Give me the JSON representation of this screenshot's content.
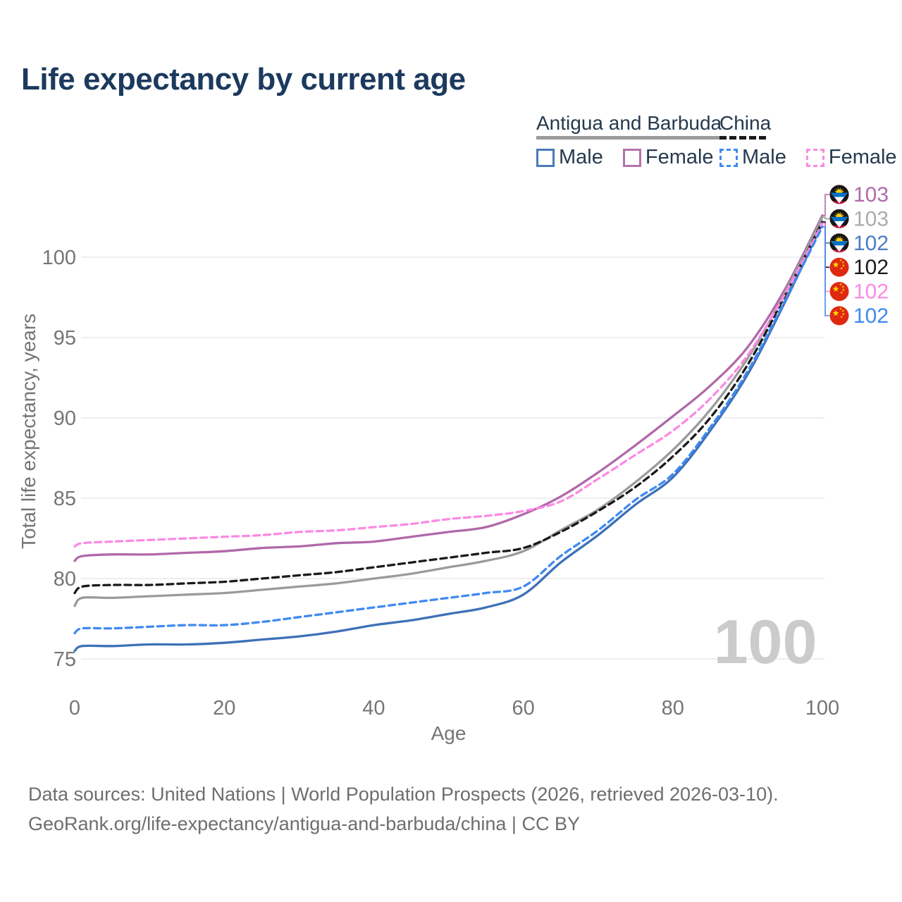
{
  "title": "Life expectancy by current age",
  "legend": {
    "groups": [
      {
        "label": "Antigua and Barbuda",
        "underline_style": "solid",
        "underline_color": "#9b9b9b",
        "items": [
          {
            "label": "Male",
            "color": "#4a7ab8",
            "style": "solid"
          },
          {
            "label": "Female",
            "color": "#b472ae",
            "style": "solid"
          }
        ]
      },
      {
        "label": "China",
        "underline_style": "dashed",
        "underline_color": "#1a1a1a",
        "items": [
          {
            "label": "Male",
            "color": "#3f8af0",
            "style": "dashed"
          },
          {
            "label": "Female",
            "color": "#fb8ae4",
            "style": "dashed"
          }
        ]
      }
    ]
  },
  "chart_data": {
    "type": "line",
    "title": "Life expectancy by current age",
    "xlabel": "Age",
    "ylabel": "Total life expectancy, years",
    "xlim": [
      0,
      100
    ],
    "ylim": [
      74,
      104
    ],
    "x_ticks": [
      0,
      20,
      40,
      60,
      80,
      100
    ],
    "y_ticks": [
      75,
      80,
      85,
      90,
      95,
      100
    ],
    "grid": "horizontal",
    "legend_position": "top-right",
    "x": [
      0,
      1,
      5,
      10,
      15,
      20,
      25,
      30,
      35,
      40,
      45,
      50,
      55,
      60,
      65,
      70,
      75,
      80,
      85,
      90,
      95,
      100
    ],
    "series": [
      {
        "name": "Antigua and Barbuda Female",
        "country": "Antigua and Barbuda",
        "sex": "Female",
        "color": "#b069a9",
        "dashed": false,
        "flag": "antigua-and-barbuda",
        "end_label": "103",
        "end_label_color": "#b069a9",
        "values": [
          81.1,
          81.4,
          81.5,
          81.5,
          81.6,
          81.7,
          81.9,
          82.0,
          82.2,
          82.3,
          82.6,
          82.9,
          83.2,
          84.0,
          85.1,
          86.6,
          88.3,
          90.1,
          92.0,
          94.4,
          98.0,
          102.6
        ]
      },
      {
        "name": "Antigua and Barbuda Total",
        "country": "Antigua and Barbuda",
        "sex": "Total",
        "color": "#9b9b9b",
        "dashed": false,
        "flag": "antigua-and-barbuda",
        "end_label": "103",
        "end_label_color": "#ababab",
        "values": [
          78.3,
          78.8,
          78.8,
          78.9,
          79.0,
          79.1,
          79.3,
          79.5,
          79.7,
          80.0,
          80.3,
          80.7,
          81.1,
          81.7,
          83.0,
          84.3,
          86.0,
          88.0,
          90.5,
          93.7,
          97.8,
          102.5
        ]
      },
      {
        "name": "Antigua and Barbuda Male",
        "country": "Antigua and Barbuda",
        "sex": "Male",
        "color": "#3e71b7",
        "dashed": false,
        "flag": "antigua-and-barbuda",
        "end_label": "102",
        "end_label_color": "#4a7cc4",
        "values": [
          75.5,
          75.8,
          75.8,
          75.9,
          75.9,
          76.0,
          76.2,
          76.4,
          76.7,
          77.1,
          77.4,
          77.8,
          78.2,
          79.0,
          81.0,
          82.7,
          84.6,
          86.3,
          89.2,
          92.7,
          97.2,
          102.1
        ]
      },
      {
        "name": "China Total",
        "country": "China",
        "sex": "Total",
        "color": "#1a1a1a",
        "dashed": true,
        "flag": "china",
        "end_label": "102",
        "end_label_color": "#1a1a1a",
        "values": [
          79.1,
          79.5,
          79.6,
          79.6,
          79.7,
          79.8,
          80.0,
          80.2,
          80.4,
          80.7,
          81.0,
          81.3,
          81.6,
          81.9,
          82.9,
          84.2,
          85.7,
          87.6,
          90.0,
          93.3,
          97.6,
          102.2
        ]
      },
      {
        "name": "China Female",
        "country": "China",
        "sex": "Female",
        "color": "#fb8ae4",
        "dashed": true,
        "flag": "china",
        "end_label": "102",
        "end_label_color": "#fb8ae4",
        "values": [
          82.0,
          82.2,
          82.3,
          82.4,
          82.5,
          82.6,
          82.7,
          82.9,
          83.0,
          83.2,
          83.4,
          83.7,
          83.9,
          84.2,
          84.8,
          86.2,
          87.7,
          89.2,
          91.2,
          93.9,
          97.7,
          102.1
        ]
      },
      {
        "name": "China Male",
        "country": "China",
        "sex": "Male",
        "color": "#3f8af0",
        "dashed": true,
        "flag": "china",
        "end_label": "102",
        "end_label_color": "#3f8af0",
        "values": [
          76.6,
          76.9,
          76.9,
          77.0,
          77.1,
          77.1,
          77.3,
          77.6,
          77.9,
          78.2,
          78.5,
          78.8,
          79.1,
          79.5,
          81.4,
          83.0,
          84.9,
          86.5,
          89.4,
          92.9,
          97.3,
          101.9
        ]
      }
    ]
  },
  "watermark": "100",
  "footer": {
    "line1": "Data sources: United Nations | World Population Prospects (2026, retrieved 2026-03-10).",
    "line2": "GeoRank.org/life-expectancy/antigua-and-barbuda/china | CC BY"
  }
}
